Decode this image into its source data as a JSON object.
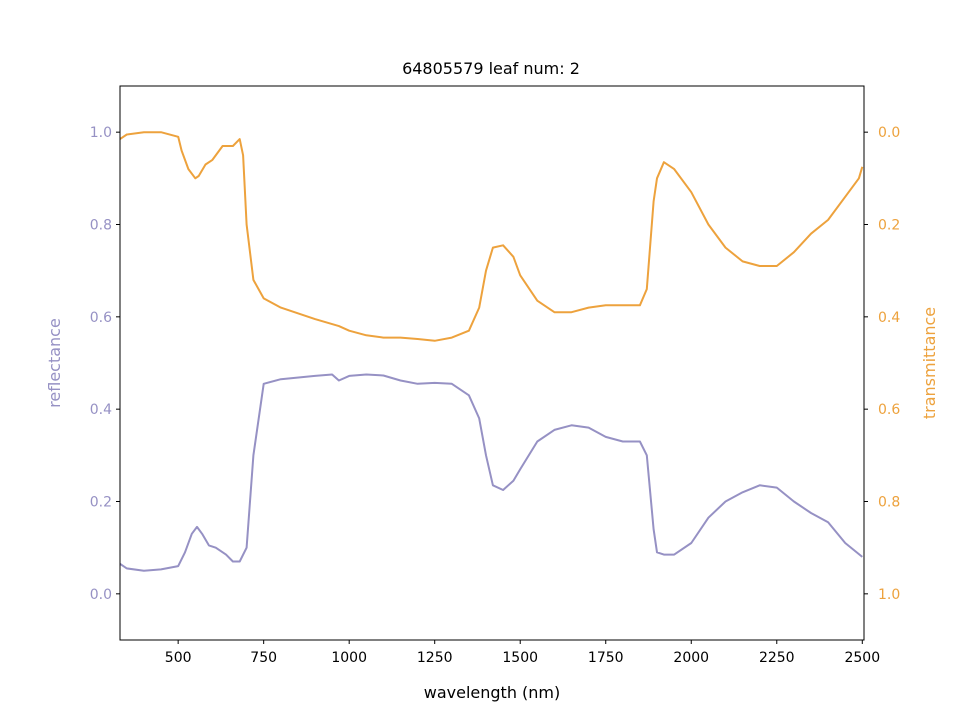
{
  "chart_data": {
    "type": "line",
    "title": "64805579 leaf num: 2",
    "xlabel": "wavelength (nm)",
    "xlim": [
      330,
      2505
    ],
    "x_ticks": [
      500,
      750,
      1000,
      1250,
      1500,
      1750,
      2000,
      2250,
      2500
    ],
    "left_axis": {
      "label": "reflectance",
      "ylim": [
        -0.1,
        1.1
      ],
      "ticks": [
        0.0,
        0.2,
        0.4,
        0.6,
        0.8,
        1.0
      ],
      "color": "#9691c4"
    },
    "right_axis": {
      "label": "transmittance",
      "ylim": [
        1.1,
        -0.1
      ],
      "inverted": true,
      "ticks": [
        0.0,
        0.2,
        0.4,
        0.6,
        0.8,
        1.0
      ],
      "color": "#eda23d"
    },
    "series": [
      {
        "key": "reflectance",
        "axis": "left",
        "color": "#9691c4",
        "x": [
          330,
          350,
          400,
          450,
          500,
          520,
          540,
          555,
          570,
          590,
          610,
          640,
          660,
          680,
          700,
          720,
          750,
          800,
          900,
          950,
          970,
          1000,
          1050,
          1100,
          1150,
          1200,
          1250,
          1300,
          1350,
          1380,
          1400,
          1420,
          1450,
          1480,
          1500,
          1550,
          1600,
          1650,
          1700,
          1750,
          1800,
          1850,
          1870,
          1890,
          1900,
          1920,
          1950,
          2000,
          2050,
          2100,
          2150,
          2200,
          2250,
          2300,
          2350,
          2400,
          2450,
          2500
        ],
        "y": [
          0.065,
          0.055,
          0.05,
          0.053,
          0.06,
          0.09,
          0.13,
          0.145,
          0.13,
          0.105,
          0.1,
          0.085,
          0.07,
          0.07,
          0.1,
          0.3,
          0.455,
          0.465,
          0.472,
          0.475,
          0.462,
          0.472,
          0.475,
          0.473,
          0.462,
          0.455,
          0.457,
          0.455,
          0.43,
          0.38,
          0.3,
          0.235,
          0.225,
          0.245,
          0.27,
          0.33,
          0.355,
          0.365,
          0.36,
          0.34,
          0.33,
          0.33,
          0.3,
          0.14,
          0.09,
          0.085,
          0.085,
          0.11,
          0.165,
          0.2,
          0.22,
          0.235,
          0.23,
          0.2,
          0.175,
          0.155,
          0.11,
          0.08
        ]
      },
      {
        "key": "transmittance",
        "axis": "right",
        "color": "#eda23d",
        "x": [
          330,
          350,
          400,
          450,
          500,
          510,
          530,
          550,
          560,
          580,
          600,
          630,
          660,
          680,
          690,
          700,
          720,
          750,
          800,
          900,
          970,
          1000,
          1050,
          1100,
          1150,
          1200,
          1250,
          1300,
          1350,
          1380,
          1400,
          1420,
          1450,
          1480,
          1500,
          1550,
          1600,
          1650,
          1700,
          1750,
          1800,
          1850,
          1870,
          1890,
          1900,
          1920,
          1950,
          2000,
          2050,
          2100,
          2150,
          2200,
          2250,
          2300,
          2350,
          2400,
          2450,
          2490,
          2500
        ],
        "y": [
          0.015,
          0.005,
          0.0,
          0.0,
          0.01,
          0.04,
          0.08,
          0.1,
          0.095,
          0.07,
          0.06,
          0.03,
          0.03,
          0.015,
          0.05,
          0.2,
          0.32,
          0.36,
          0.38,
          0.405,
          0.42,
          0.43,
          0.44,
          0.445,
          0.445,
          0.448,
          0.452,
          0.445,
          0.43,
          0.38,
          0.3,
          0.25,
          0.245,
          0.27,
          0.31,
          0.365,
          0.39,
          0.39,
          0.38,
          0.375,
          0.375,
          0.375,
          0.34,
          0.15,
          0.1,
          0.065,
          0.08,
          0.13,
          0.2,
          0.25,
          0.28,
          0.29,
          0.29,
          0.26,
          0.22,
          0.19,
          0.14,
          0.1,
          0.075
        ]
      }
    ],
    "grid": false,
    "legend": "none"
  }
}
